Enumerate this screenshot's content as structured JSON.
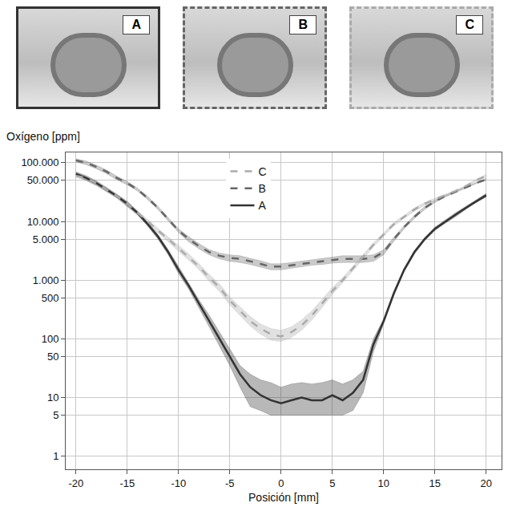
{
  "chart_data": {
    "type": "line",
    "x_label": "Posición [mm]",
    "y_label": "Oxígeno [ppm]",
    "log": "y",
    "grid": true,
    "legend": "top",
    "xlim": [
      -21,
      21.5
    ],
    "xticks": [
      -20,
      -15,
      -10,
      -5,
      0,
      5,
      10,
      15,
      20
    ],
    "ylim": [
      0.6,
      150000
    ],
    "yticks": [
      1,
      5,
      10,
      50,
      100,
      500,
      {
        "value": 1000,
        "label": "1.000"
      },
      {
        "value": 5000,
        "label": "5.000"
      },
      {
        "value": 10000,
        "label": "10.000"
      },
      {
        "value": 50000,
        "label": "50.000"
      },
      {
        "value": 100000,
        "label": "100.000"
      }
    ],
    "x": [
      -20,
      -19,
      -18,
      -17,
      -16,
      -15,
      -14,
      -13,
      -12,
      -11,
      -10,
      -9,
      -8,
      -7,
      -6,
      -5,
      -4,
      -3,
      -2,
      -1,
      0,
      1,
      2,
      3,
      4,
      5,
      6,
      7,
      8,
      9,
      10,
      11,
      12,
      13,
      14,
      15,
      16,
      17,
      18,
      19,
      20
    ],
    "series": [
      {
        "name": "A",
        "color": "#333333",
        "line_style": "solid",
        "values": [
          65000,
          55000,
          45000,
          35000,
          27000,
          20000,
          14000,
          9000,
          5500,
          3000,
          1500,
          800,
          400,
          200,
          100,
          50,
          25,
          15,
          11,
          9,
          8,
          9,
          10,
          9,
          9,
          11,
          9,
          12,
          20,
          80,
          200,
          600,
          1500,
          3000,
          5000,
          7500,
          10000,
          13000,
          17000,
          22000,
          28000
        ],
        "lower": [
          60000,
          50000,
          41000,
          32000,
          25000,
          18000,
          13000,
          8300,
          5000,
          2700,
          1300,
          700,
          340,
          160,
          75,
          35,
          15,
          7,
          6,
          5,
          5,
          5,
          5,
          5,
          5,
          5,
          5,
          6,
          12,
          60,
          180,
          550,
          1400,
          2800,
          4700,
          7000,
          9300,
          12000,
          16000,
          21000,
          26000
        ],
        "upper": [
          70000,
          60000,
          49000,
          38000,
          29000,
          22000,
          15000,
          9700,
          6000,
          3300,
          1700,
          900,
          460,
          250,
          130,
          70,
          35,
          25,
          20,
          18,
          15,
          17,
          18,
          17,
          18,
          20,
          17,
          20,
          28,
          100,
          220,
          650,
          1600,
          3200,
          5300,
          8000,
          10700,
          14000,
          18000,
          23000,
          30000
        ]
      },
      {
        "name": "B",
        "color": "#666666",
        "line_style": "dashed",
        "values": [
          110000,
          100000,
          85000,
          70000,
          55000,
          45000,
          35000,
          25000,
          17000,
          11000,
          7000,
          5000,
          3800,
          3000,
          2600,
          2400,
          2300,
          2100,
          1900,
          1700,
          1700,
          1800,
          1900,
          2000,
          2100,
          2200,
          2300,
          2300,
          2300,
          2400,
          3000,
          5000,
          8000,
          12000,
          17000,
          22000,
          27000,
          32000,
          38000,
          45000,
          52000
        ],
        "lower": [
          103000,
          93000,
          79000,
          65000,
          51000,
          42000,
          33000,
          23500,
          16000,
          10300,
          6500,
          4500,
          3400,
          2700,
          2300,
          2100,
          2000,
          1850,
          1650,
          1500,
          1500,
          1600,
          1700,
          1800,
          1850,
          1950,
          2000,
          2000,
          2000,
          2100,
          2700,
          4600,
          7500,
          11300,
          16000,
          21000,
          26000,
          31000,
          37000,
          44000,
          50000
        ],
        "upper": [
          117000,
          107000,
          91000,
          75000,
          59000,
          48000,
          37000,
          26500,
          18000,
          11700,
          7500,
          5500,
          4200,
          3300,
          2900,
          2700,
          2600,
          2350,
          2150,
          1900,
          1900,
          2000,
          2100,
          2200,
          2350,
          2450,
          2600,
          2600,
          2600,
          2700,
          3300,
          5400,
          8500,
          12700,
          18000,
          23000,
          28000,
          33000,
          39000,
          46000,
          54000
        ]
      },
      {
        "name": "C",
        "color": "#aaaaaa",
        "line_style": "dashed",
        "values": [
          60000,
          55000,
          45000,
          35000,
          27000,
          20000,
          14000,
          10000,
          7000,
          5000,
          3500,
          2500,
          1700,
          1100,
          750,
          450,
          300,
          200,
          150,
          120,
          110,
          130,
          170,
          250,
          400,
          650,
          1000,
          1600,
          2500,
          4000,
          6000,
          9000,
          12000,
          16000,
          20000,
          24000,
          28000,
          33000,
          40000,
          50000,
          60000
        ],
        "lower": [
          56000,
          51000,
          42000,
          33000,
          25000,
          18500,
          13000,
          9200,
          6400,
          4500,
          3100,
          2200,
          1500,
          950,
          640,
          380,
          250,
          165,
          120,
          95,
          90,
          105,
          140,
          210,
          340,
          570,
          900,
          1450,
          2300,
          3700,
          5600,
          8400,
          11300,
          15000,
          19000,
          23000,
          27000,
          32000,
          39000,
          48000,
          57000
        ],
        "upper": [
          64000,
          59000,
          48000,
          37000,
          29000,
          21500,
          15000,
          10800,
          7600,
          5500,
          3900,
          2800,
          1900,
          1250,
          860,
          520,
          350,
          240,
          180,
          150,
          140,
          160,
          210,
          300,
          470,
          750,
          1100,
          1750,
          2700,
          4300,
          6400,
          9600,
          12700,
          17000,
          21000,
          25000,
          29000,
          34000,
          41000,
          52000,
          63000
        ]
      }
    ]
  }
}
